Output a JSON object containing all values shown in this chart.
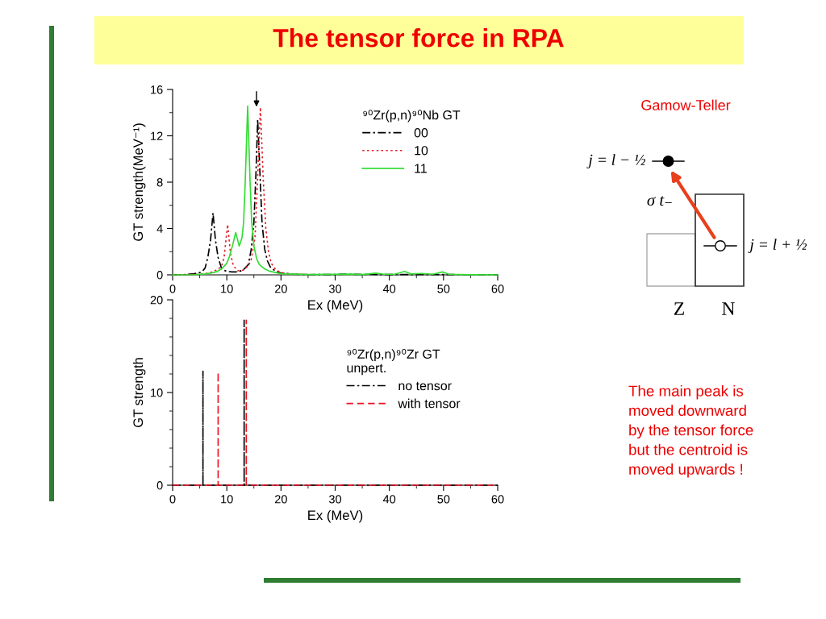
{
  "chart_data": [
    {
      "type": "line",
      "title": "The tensor force in RPA",
      "xlabel": "Ex (MeV)",
      "ylabel": "GT strength(MeV⁻¹)",
      "legend_title": "⁹⁰Zr(p,n)⁹⁰Nb GT",
      "legend": "top right",
      "xlim": [
        0,
        60
      ],
      "xticks": [
        0,
        10,
        20,
        30,
        40,
        50,
        60
      ],
      "ylim": [
        0,
        16
      ],
      "yticks": [
        0,
        4,
        8,
        12,
        16
      ],
      "series": [
        {
          "name": "00",
          "color": "#000000",
          "line_style": "dashdot",
          "x": [
            0,
            2,
            4,
            5,
            5.5,
            6,
            6.5,
            7,
            7.46,
            7.9,
            8.4,
            9,
            9.5,
            10,
            11,
            12,
            13,
            14,
            14.5,
            15,
            15.4,
            15.7,
            16.1,
            16.5,
            17,
            17.5,
            18,
            19,
            20,
            22,
            25,
            30,
            32,
            34,
            38,
            42,
            46,
            50,
            55,
            60
          ],
          "values": [
            0,
            0.02,
            0.1,
            0.2,
            0.3,
            0.6,
            1.5,
            3.0,
            5.34,
            3.0,
            1.5,
            0.6,
            0.4,
            0.3,
            0.25,
            0.25,
            0.4,
            0.9,
            2.2,
            4.5,
            9,
            13.4,
            9,
            4.5,
            2.2,
            1.2,
            0.7,
            0.3,
            0.15,
            0.05,
            0.02,
            0.03,
            0.06,
            0.04,
            0.03,
            0.03,
            0.02,
            0.03,
            0.01,
            0
          ]
        },
        {
          "name": "10",
          "color": "#e8202a",
          "line_style": "dotted",
          "x": [
            0,
            4,
            6,
            7,
            8,
            9,
            9.5,
            10.15,
            10.7,
            11.2,
            12,
            13,
            14,
            14.5,
            15.2,
            15.7,
            16.2,
            16.7,
            17.2,
            17.7,
            18.2,
            19,
            20,
            22,
            25
          ],
          "values": [
            0,
            0.03,
            0.1,
            0.2,
            0.4,
            0.7,
            1.5,
            4.34,
            1.8,
            0.8,
            0.35,
            0.4,
            0.8,
            1.3,
            3.2,
            8.5,
            14.45,
            8.5,
            4,
            2,
            1.0,
            0.45,
            0.2,
            0.08,
            0.03
          ]
        },
        {
          "name": "11",
          "color": "#33dd33",
          "line_style": "solid",
          "x": [
            0,
            4,
            6,
            7,
            8,
            9,
            10,
            10.5,
            11.1,
            11.64,
            12.3,
            12.8,
            13.1,
            13.4,
            13.85,
            14.3,
            14.6,
            15,
            15.5,
            16,
            17,
            18,
            19,
            20,
            25,
            30,
            33,
            35,
            37.5,
            39,
            41,
            42.8,
            44,
            46,
            48,
            49.8,
            51,
            53,
            55,
            60
          ],
          "values": [
            0,
            0.02,
            0.08,
            0.15,
            0.25,
            0.5,
            1.0,
            1.6,
            2.6,
            3.65,
            2.48,
            3.2,
            4.5,
            8,
            14.56,
            8,
            4.5,
            2.5,
            1.4,
            0.9,
            0.5,
            0.3,
            0.2,
            0.1,
            0.03,
            0.04,
            0.06,
            0.03,
            0.15,
            0.05,
            0.05,
            0.3,
            0.08,
            0.12,
            0.05,
            0.25,
            0.05,
            0.03,
            0.01,
            0
          ]
        }
      ]
    },
    {
      "type": "line",
      "xlabel": "Ex (MeV)",
      "ylabel": "GT strength",
      "legend_title": "⁹⁰Zr(p,n)⁹⁰Zr GT\nunpert.",
      "legend": "right",
      "xlim": [
        0,
        60
      ],
      "xticks": [
        0,
        10,
        20,
        30,
        40,
        50,
        60
      ],
      "ylim": [
        0,
        20
      ],
      "yticks": [
        0,
        10,
        20
      ],
      "series": [
        {
          "name": "no tensor",
          "color": "#000000",
          "line_style": "dashdot",
          "x": [
            0,
            5.6,
            5.6,
            5.6,
            13.2,
            13.2,
            13.2,
            60
          ],
          "values": [
            0,
            0,
            12.3,
            0,
            0,
            17.8,
            0,
            0
          ]
        },
        {
          "name": "with tensor",
          "color": "#ee1122",
          "line_style": "dashed",
          "x": [
            0,
            8.4,
            8.4,
            8.4,
            13.6,
            13.6,
            13.6,
            60
          ],
          "values": [
            0,
            0,
            12.2,
            0,
            0,
            17.8,
            0,
            0
          ]
        }
      ]
    },
    {
      "type": "other",
      "annotations": [
        "Gamow-Teller",
        "j = l − ½",
        "σ t₋",
        "j = l + ½",
        "Z",
        "N",
        "The main peak is\nmoved downward\nby the tensor force\nbut the centroid is\nmoved upwards !"
      ]
    }
  ]
}
